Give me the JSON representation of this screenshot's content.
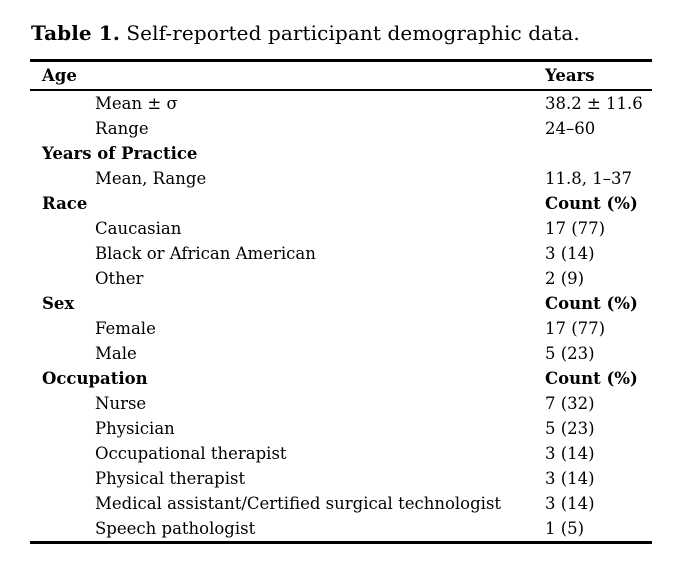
{
  "title": {
    "label": "Table 1.",
    "text": " Self-reported participant demographic data."
  },
  "table": {
    "header": {
      "col1": "Age",
      "col2": "Years"
    },
    "rows": [
      {
        "label": "Mean ± σ",
        "value": "38.2 ± 11.6",
        "indent": true,
        "bold": false
      },
      {
        "label": "Range",
        "value": "24–60",
        "indent": true,
        "bold": false
      },
      {
        "label": "Years of Practice",
        "value": "",
        "indent": false,
        "bold": true
      },
      {
        "label": "Mean, Range",
        "value": "11.8, 1–37",
        "indent": true,
        "bold": false
      },
      {
        "label": "Race",
        "value": "Count (%)",
        "indent": false,
        "bold": true
      },
      {
        "label": "Caucasian",
        "value": "17 (77)",
        "indent": true,
        "bold": false
      },
      {
        "label": "Black or African American",
        "value": "3 (14)",
        "indent": true,
        "bold": false
      },
      {
        "label": "Other",
        "value": "2 (9)",
        "indent": true,
        "bold": false
      },
      {
        "label": "Sex",
        "value": "Count (%)",
        "indent": false,
        "bold": true
      },
      {
        "label": "Female",
        "value": "17 (77)",
        "indent": true,
        "bold": false
      },
      {
        "label": "Male",
        "value": "5 (23)",
        "indent": true,
        "bold": false
      },
      {
        "label": "Occupation",
        "value": "Count (%)",
        "indent": false,
        "bold": true
      },
      {
        "label": "Nurse",
        "value": "7 (32)",
        "indent": true,
        "bold": false
      },
      {
        "label": "Physician",
        "value": "5 (23)",
        "indent": true,
        "bold": false
      },
      {
        "label": "Occupational therapist",
        "value": "3 (14)",
        "indent": true,
        "bold": false
      },
      {
        "label": "Physical therapist",
        "value": "3 (14)",
        "indent": true,
        "bold": false
      },
      {
        "label": "Medical assistant/Certified surgical technologist",
        "value": "3 (14)",
        "indent": true,
        "bold": false
      },
      {
        "label": "Speech pathologist",
        "value": "1 (5)",
        "indent": true,
        "bold": false
      }
    ]
  },
  "colors": {
    "text": "#000000",
    "background": "#ffffff",
    "rule": "#000000"
  }
}
